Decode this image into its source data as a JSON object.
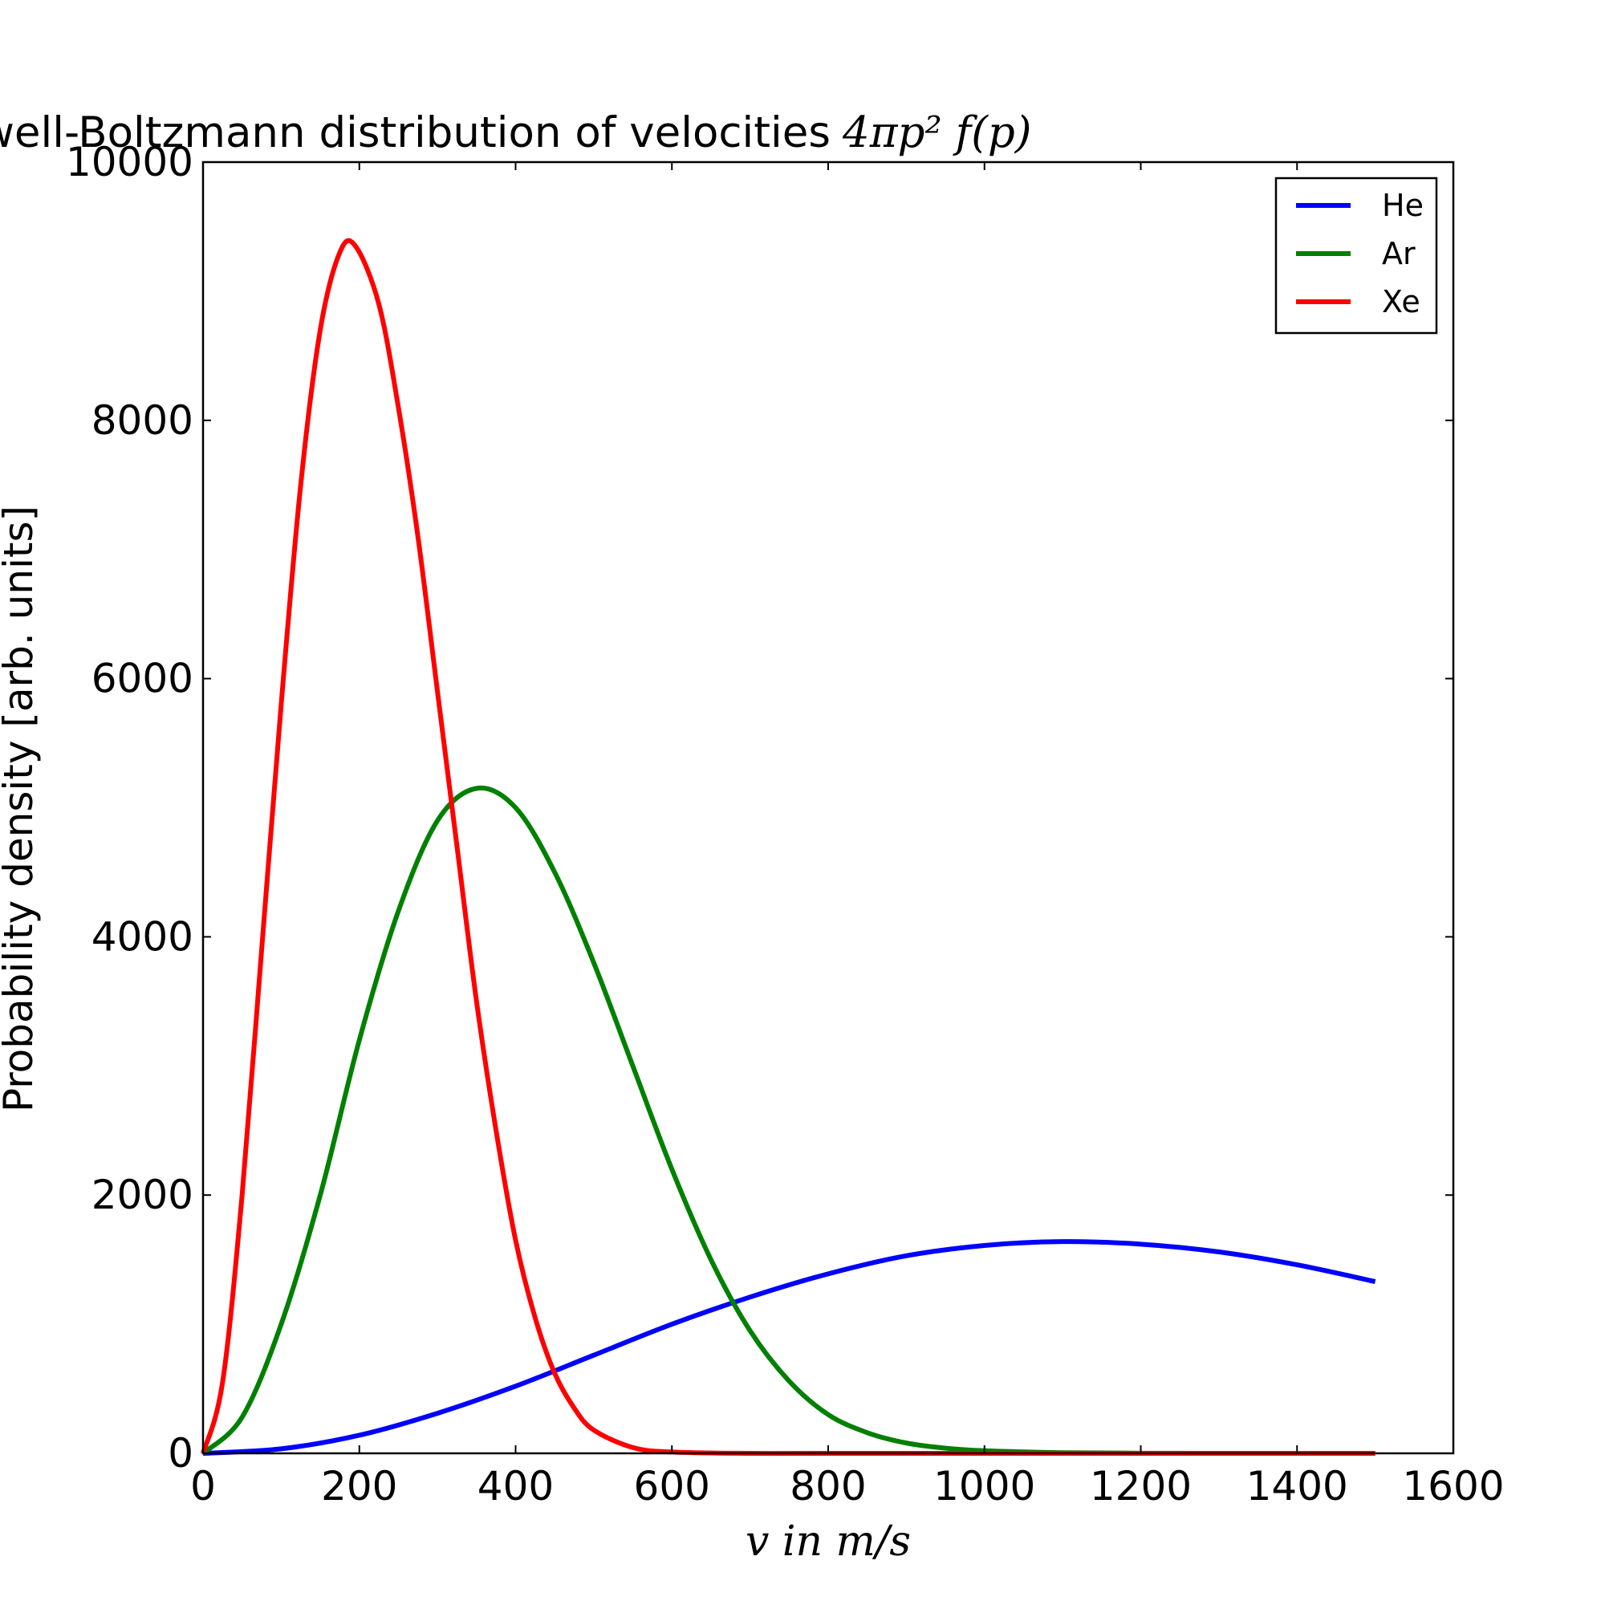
{
  "chart_data": {
    "type": "line",
    "title": "Maxwell-Boltzmann distribution of velocities",
    "title_math": "4πp² f(p)",
    "xlabel": "v in m/s",
    "ylabel": "Probability density [arb. units]",
    "xlim": [
      0,
      1600
    ],
    "ylim": [
      0,
      10000
    ],
    "xticks": [
      0,
      200,
      400,
      600,
      800,
      1000,
      1200,
      1400,
      1600
    ],
    "yticks": [
      0,
      2000,
      4000,
      6000,
      8000,
      10000
    ],
    "grid": false,
    "legend_position": "top-right",
    "series": [
      {
        "name": "He",
        "color": "#0000ff",
        "x": [
          0,
          100,
          200,
          300,
          400,
          500,
          600,
          700,
          800,
          900,
          1000,
          1100,
          1200,
          1300,
          1400,
          1500
        ],
        "y": [
          0,
          35,
          140,
          310,
          520,
          760,
          1000,
          1210,
          1390,
          1530,
          1610,
          1640,
          1620,
          1560,
          1460,
          1330
        ]
      },
      {
        "name": "Ar",
        "color": "#008000",
        "x": [
          0,
          50,
          100,
          150,
          200,
          250,
          300,
          350,
          400,
          450,
          500,
          550,
          600,
          650,
          700,
          750,
          800,
          850,
          900,
          950,
          1000,
          1100,
          1200,
          1300,
          1400,
          1500
        ],
        "y": [
          0,
          280,
          1000,
          2000,
          3200,
          4200,
          4900,
          5150,
          5000,
          4500,
          3800,
          3000,
          2200,
          1500,
          950,
          560,
          300,
          160,
          80,
          40,
          20,
          5,
          1,
          0,
          0,
          0
        ]
      },
      {
        "name": "Xe",
        "color": "#ff0000",
        "x": [
          0,
          25,
          50,
          75,
          100,
          125,
          150,
          175,
          195,
          225,
          250,
          275,
          300,
          325,
          350,
          375,
          400,
          425,
          450,
          475,
          500,
          550,
          600,
          700,
          800,
          1000,
          1200,
          1500
        ],
        "y": [
          0,
          550,
          2000,
          3900,
          5800,
          7500,
          8700,
          9300,
          9350,
          8900,
          8100,
          7100,
          5900,
          4700,
          3500,
          2500,
          1650,
          1050,
          620,
          350,
          180,
          45,
          10,
          0,
          0,
          0,
          0,
          0
        ]
      }
    ]
  }
}
